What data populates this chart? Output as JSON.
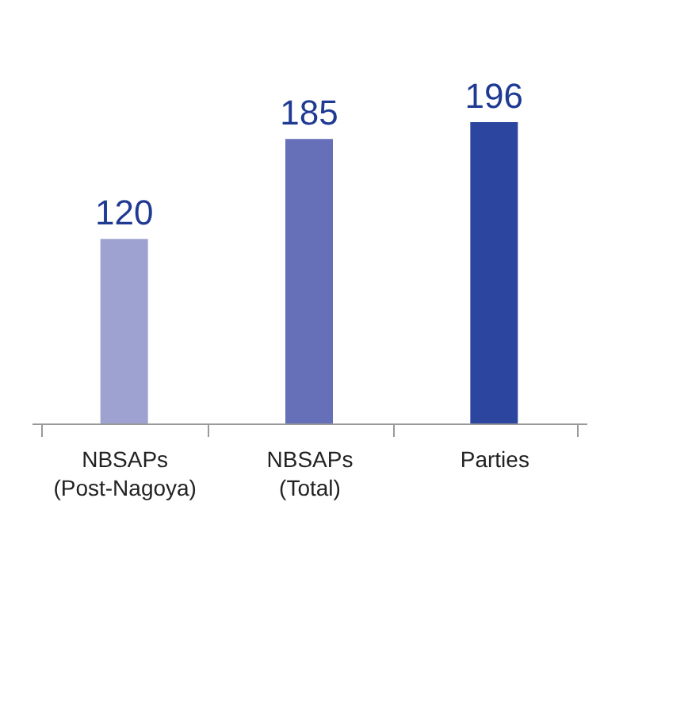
{
  "chart_data": {
    "type": "bar",
    "categories": [
      "NBSAPs\n(Post-Nagoya)",
      "NBSAPs\n(Total)",
      "Parties"
    ],
    "values": [
      120,
      185,
      196
    ],
    "colors": [
      "#9ea2d0",
      "#6670b8",
      "#2c46a0"
    ],
    "data_labels": true
  }
}
